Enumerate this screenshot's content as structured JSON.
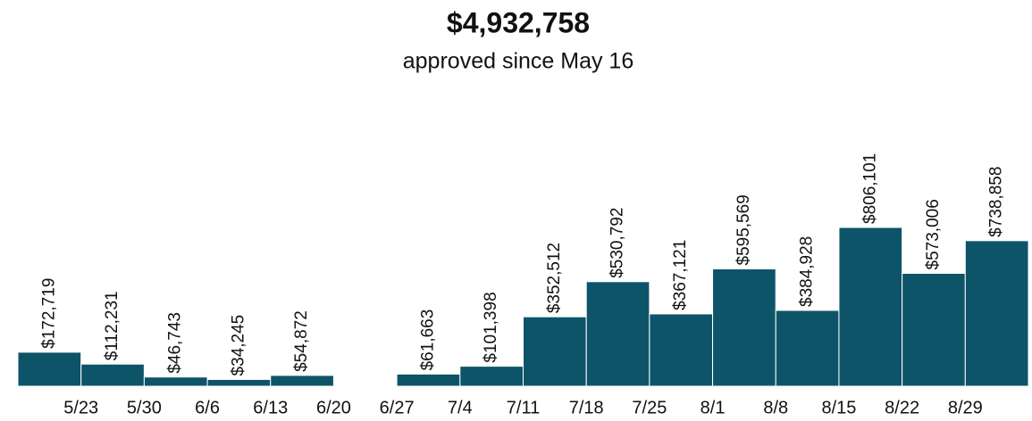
{
  "chart_data": {
    "type": "bar",
    "title": "$4,932,758",
    "subtitle": "approved since May 16",
    "xticks": [
      "5/23",
      "5/30",
      "6/6",
      "6/13",
      "6/20",
      "6/27",
      "7/4",
      "7/11",
      "7/18",
      "7/25",
      "8/1",
      "8/8",
      "8/15",
      "8/22",
      "8/29"
    ],
    "values": [
      172719,
      112231,
      46743,
      34245,
      54872,
      null,
      61663,
      101398,
      352512,
      530792,
      367121,
      595569,
      384928,
      806101,
      573006,
      738858
    ],
    "value_labels": [
      "$172,719",
      "$112,231",
      "$46,743",
      "$34,245",
      "$54,872",
      null,
      "$61,663",
      "$101,398",
      "$352,512",
      "$530,792",
      "$367,121",
      "$595,569",
      "$384,928",
      "$806,101",
      "$573,006",
      "$738,858"
    ],
    "color": "#0e5469"
  }
}
